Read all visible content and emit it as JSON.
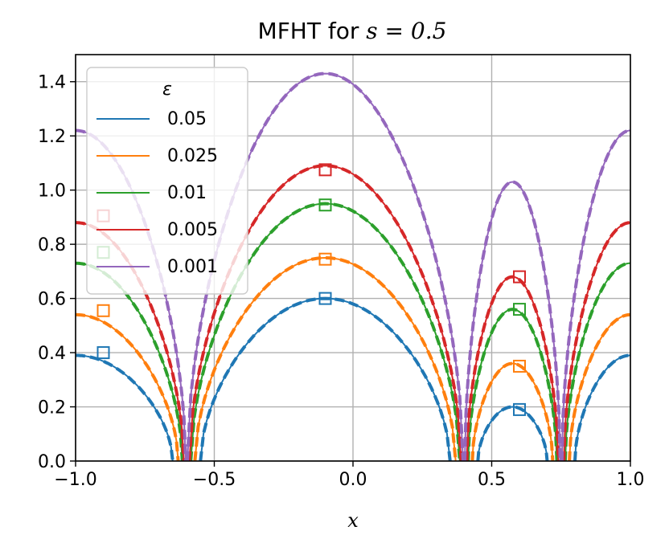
{
  "chart_data": {
    "type": "line",
    "title_prefix": "MFHT for ",
    "title_math": "s = 0.5",
    "xlabel": "x",
    "ylabel": "",
    "xlim": [
      -1.0,
      1.0
    ],
    "ylim": [
      0.0,
      1.5
    ],
    "xticks": [
      "−1.0",
      "−0.5",
      "0.0",
      "0.5",
      "1.0"
    ],
    "xtick_values": [
      -1.0,
      -0.5,
      0.0,
      0.5,
      1.0
    ],
    "yticks": [
      "0.0",
      "0.2",
      "0.4",
      "0.6",
      "0.8",
      "1.0",
      "1.2",
      "1.4"
    ],
    "ytick_values": [
      0.0,
      0.2,
      0.4,
      0.6,
      0.8,
      1.0,
      1.2,
      1.4
    ],
    "grid": true,
    "legend_title": "ε",
    "legend_position": "upper-left",
    "targets": [
      -0.6,
      0.4,
      0.75
    ],
    "series": [
      {
        "name": "0.05",
        "color": "#1f77b4",
        "squares": [
          [
            -0.9,
            0.4
          ],
          [
            -0.1,
            0.6
          ],
          [
            0.6,
            0.19
          ]
        ],
        "peaks": [
          {
            "x": -1.0,
            "y": 0.39
          },
          {
            "x": -0.9,
            "y": 0.42
          },
          {
            "x": -0.12,
            "y": 0.6
          },
          {
            "x": 0.57,
            "y": 0.2
          },
          {
            "x": 1.0,
            "y": 0.39
          }
        ]
      },
      {
        "name": "0.025",
        "color": "#ff7f0e",
        "squares": [
          [
            -0.9,
            0.555
          ],
          [
            -0.1,
            0.745
          ],
          [
            0.6,
            0.35
          ]
        ],
        "peaks": [
          {
            "x": -1.0,
            "y": 0.54
          },
          {
            "x": -0.9,
            "y": 0.57
          },
          {
            "x": -0.12,
            "y": 0.75
          },
          {
            "x": 0.57,
            "y": 0.36
          },
          {
            "x": 1.0,
            "y": 0.54
          }
        ]
      },
      {
        "name": "0.01",
        "color": "#2ca02c",
        "squares": [
          [
            -0.9,
            0.77
          ],
          [
            -0.1,
            0.945
          ],
          [
            0.6,
            0.56
          ]
        ],
        "peaks": [
          {
            "x": -1.0,
            "y": 0.73
          },
          {
            "x": -0.12,
            "y": 0.95
          },
          {
            "x": 0.57,
            "y": 0.56
          },
          {
            "x": 1.0,
            "y": 0.73
          }
        ]
      },
      {
        "name": "0.005",
        "color": "#d62728",
        "squares": [
          [
            -0.9,
            0.905
          ],
          [
            -0.1,
            1.075
          ],
          [
            0.6,
            0.68
          ]
        ],
        "peaks": [
          {
            "x": -1.0,
            "y": 0.88
          },
          {
            "x": -0.12,
            "y": 1.09
          },
          {
            "x": 0.57,
            "y": 0.68
          },
          {
            "x": 1.0,
            "y": 0.88
          }
        ]
      },
      {
        "name": "0.001",
        "color": "#9467bd",
        "squares": [],
        "peaks": [
          {
            "x": -1.0,
            "y": 1.22
          },
          {
            "x": -0.12,
            "y": 1.43
          },
          {
            "x": 0.57,
            "y": 1.03
          },
          {
            "x": 1.0,
            "y": 1.22
          }
        ]
      }
    ]
  }
}
